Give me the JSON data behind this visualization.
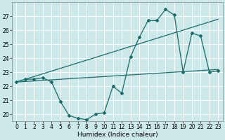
{
  "xlabel": "Humidex (Indice chaleur)",
  "background_color": "#cce8e8",
  "grid_color": "#ffffff",
  "line_color": "#1a6b6b",
  "line1_x": [
    0,
    1,
    2,
    3,
    4,
    5,
    6,
    7,
    8,
    9,
    10,
    11,
    12,
    13,
    14,
    15,
    16,
    17,
    18,
    19,
    20,
    21,
    22,
    23
  ],
  "line1_y": [
    22.3,
    22.5,
    22.5,
    22.6,
    22.3,
    20.9,
    19.9,
    19.7,
    19.6,
    20.0,
    20.1,
    22.0,
    21.5,
    24.1,
    25.5,
    26.7,
    26.7,
    27.5,
    27.1,
    23.0,
    25.8,
    25.6,
    23.0,
    23.1
  ],
  "line2_x": [
    0,
    23
  ],
  "line2_y": [
    22.3,
    26.8
  ],
  "line3_x": [
    0,
    23
  ],
  "line3_y": [
    22.3,
    23.2
  ],
  "xlim_min": -0.5,
  "xlim_max": 23.5,
  "ylim_min": 19.5,
  "ylim_max": 28.0,
  "yticks": [
    20,
    21,
    22,
    23,
    24,
    25,
    26,
    27
  ],
  "xticks": [
    0,
    1,
    2,
    3,
    4,
    5,
    6,
    7,
    8,
    9,
    10,
    11,
    12,
    13,
    14,
    15,
    16,
    17,
    18,
    19,
    20,
    21,
    22,
    23
  ],
  "tick_fontsize": 5.5,
  "xlabel_fontsize": 6.5,
  "figwidth": 3.2,
  "figheight": 2.0,
  "dpi": 100
}
